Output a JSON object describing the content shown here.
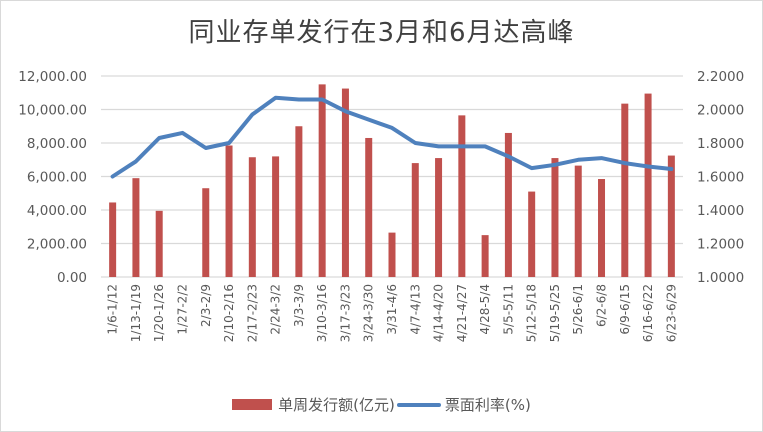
{
  "title": "同业存单发行在3月和6月达高峰",
  "legend": {
    "bar_label": "单周发行额(亿元)",
    "line_label": "票面利率(%)"
  },
  "colors": {
    "bar": "#c0504d",
    "line": "#4f81bd",
    "grid": "#d9d9d9",
    "text": "#595959",
    "title": "#404040"
  },
  "chart_data": {
    "type": "bar+line",
    "title": "同业存单发行在3月和6月达高峰",
    "xlabel": "",
    "ylabel": "",
    "ylim": [
      0,
      12000
    ],
    "y2lim": [
      1.0,
      2.2
    ],
    "yticks": [
      "0.00",
      "2,000.00",
      "4,000.00",
      "6,000.00",
      "8,000.00",
      "10,000.00",
      "12,000.00"
    ],
    "y2ticks": [
      "1.0000",
      "1.2000",
      "1.4000",
      "1.6000",
      "1.8000",
      "2.0000",
      "2.2000"
    ],
    "grid": true,
    "legend_position": "bottom",
    "categories": [
      "1/6-1/12",
      "1/13-1/19",
      "1/20-1/26",
      "1/27-2/2",
      "2/3-2/9",
      "2/10-2/16",
      "2/17-2/23",
      "2/24-3/2",
      "3/3-3/9",
      "3/10-3/16",
      "3/17-3/23",
      "3/24-3/30",
      "3/31-4/6",
      "4/7-4/13",
      "4/14-4/20",
      "4/21-4/27",
      "4/28-5/4",
      "5/5-5/11",
      "5/12-5/18",
      "5/19-5/25",
      "5/26-6/1",
      "6/2-6/8",
      "6/9-6/15",
      "6/16-6/22",
      "6/23-6/29"
    ],
    "series": [
      {
        "name": "单周发行额(亿元)",
        "type": "bar",
        "axis": "left",
        "values": [
          4450,
          5900,
          3950,
          0,
          5300,
          7850,
          7150,
          7200,
          9000,
          11500,
          11250,
          8300,
          2650,
          6800,
          7100,
          9650,
          2500,
          8600,
          5100,
          7100,
          6650,
          5850,
          10350,
          10950,
          7250
        ]
      },
      {
        "name": "票面利率(%)",
        "type": "line",
        "axis": "right",
        "values": [
          1.6,
          1.69,
          1.83,
          1.86,
          1.77,
          1.8,
          1.97,
          2.07,
          2.06,
          2.06,
          1.99,
          1.94,
          1.89,
          1.8,
          1.78,
          1.78,
          1.78,
          1.72,
          1.65,
          1.67,
          1.7,
          1.71,
          1.68,
          1.66,
          1.645
        ]
      }
    ]
  }
}
